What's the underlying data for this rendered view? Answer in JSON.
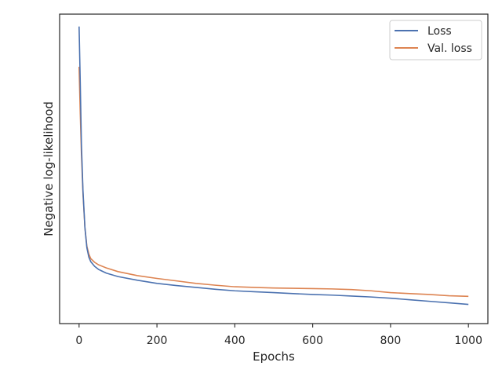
{
  "chart_data": {
    "type": "line",
    "title": "",
    "xlabel": "Epochs",
    "ylabel": "Negative log-likelihood",
    "xlim": [
      -50,
      1050
    ],
    "ylim": [
      0,
      1
    ],
    "xticks": [
      0,
      200,
      400,
      600,
      800,
      1000
    ],
    "yticks_shown": false,
    "grid": false,
    "legend": {
      "position": "top-right"
    },
    "series": [
      {
        "name": "Loss",
        "color": "#4c72b0",
        "x": [
          0,
          3,
          6,
          10,
          15,
          20,
          25,
          30,
          40,
          50,
          70,
          100,
          150,
          200,
          250,
          300,
          350,
          400,
          450,
          500,
          550,
          600,
          650,
          700,
          750,
          800,
          850,
          900,
          950,
          1000
        ],
        "y": [
          0.96,
          0.78,
          0.58,
          0.43,
          0.31,
          0.245,
          0.215,
          0.2,
          0.185,
          0.175,
          0.163,
          0.152,
          0.14,
          0.13,
          0.123,
          0.117,
          0.111,
          0.106,
          0.103,
          0.1,
          0.097,
          0.094,
          0.092,
          0.089,
          0.086,
          0.082,
          0.077,
          0.072,
          0.067,
          0.062
        ]
      },
      {
        "name": "Val. loss",
        "color": "#dd8452",
        "x": [
          0,
          3,
          6,
          10,
          15,
          20,
          25,
          30,
          40,
          50,
          70,
          100,
          150,
          200,
          250,
          300,
          350,
          400,
          450,
          500,
          550,
          600,
          650,
          700,
          750,
          800,
          850,
          900,
          950,
          1000
        ],
        "y": [
          0.83,
          0.68,
          0.55,
          0.42,
          0.31,
          0.25,
          0.225,
          0.21,
          0.198,
          0.19,
          0.18,
          0.168,
          0.155,
          0.146,
          0.138,
          0.13,
          0.124,
          0.119,
          0.117,
          0.115,
          0.114,
          0.113,
          0.112,
          0.11,
          0.106,
          0.1,
          0.097,
          0.094,
          0.09,
          0.088
        ]
      }
    ]
  }
}
